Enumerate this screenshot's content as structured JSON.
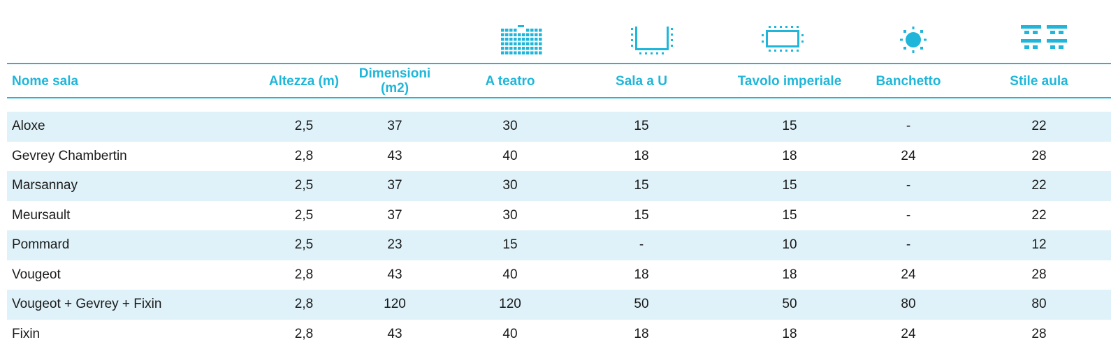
{
  "accent_color": "#1fb6d9",
  "row_shade_color": "#dff2f9",
  "icons": [
    {
      "name": "theatre-layout-icon",
      "column": "A teatro"
    },
    {
      "name": "u-shape-layout-icon",
      "column": "Sala a U"
    },
    {
      "name": "boardroom-layout-icon",
      "column": "Tavolo imperiale"
    },
    {
      "name": "banquet-layout-icon",
      "column": "Banchetto"
    },
    {
      "name": "classroom-layout-icon",
      "column": "Stile aula"
    }
  ],
  "table": {
    "headers": {
      "name": "Nome sala",
      "height": "Altezza (m)",
      "size": "Dimensioni (m2)",
      "theatre": "A teatro",
      "ushape": "Sala a U",
      "boardroom": "Tavolo imperiale",
      "banquet": "Banchetto",
      "classroom": "Stile aula"
    },
    "rows": [
      {
        "name": "Aloxe",
        "height": "2,5",
        "size": "37",
        "theatre": "30",
        "ushape": "15",
        "boardroom": "15",
        "banquet": "-",
        "classroom": "22"
      },
      {
        "name": "Gevrey Chambertin",
        "height": "2,8",
        "size": "43",
        "theatre": "40",
        "ushape": "18",
        "boardroom": "18",
        "banquet": "24",
        "classroom": "28"
      },
      {
        "name": "Marsannay",
        "height": "2,5",
        "size": "37",
        "theatre": "30",
        "ushape": "15",
        "boardroom": "15",
        "banquet": "-",
        "classroom": "22"
      },
      {
        "name": "Meursault",
        "height": "2,5",
        "size": "37",
        "theatre": "30",
        "ushape": "15",
        "boardroom": "15",
        "banquet": "-",
        "classroom": "22"
      },
      {
        "name": "Pommard",
        "height": "2,5",
        "size": "23",
        "theatre": "15",
        "ushape": "-",
        "boardroom": "10",
        "banquet": "-",
        "classroom": "12"
      },
      {
        "name": "Vougeot",
        "height": "2,8",
        "size": "43",
        "theatre": "40",
        "ushape": "18",
        "boardroom": "18",
        "banquet": "24",
        "classroom": "28"
      },
      {
        "name": "Vougeot + Gevrey + Fixin",
        "height": "2,8",
        "size": "120",
        "theatre": "120",
        "ushape": "50",
        "boardroom": "50",
        "banquet": "80",
        "classroom": "80"
      },
      {
        "name": "Fixin",
        "height": "2,8",
        "size": "43",
        "theatre": "40",
        "ushape": "18",
        "boardroom": "18",
        "banquet": "24",
        "classroom": "28"
      }
    ]
  }
}
